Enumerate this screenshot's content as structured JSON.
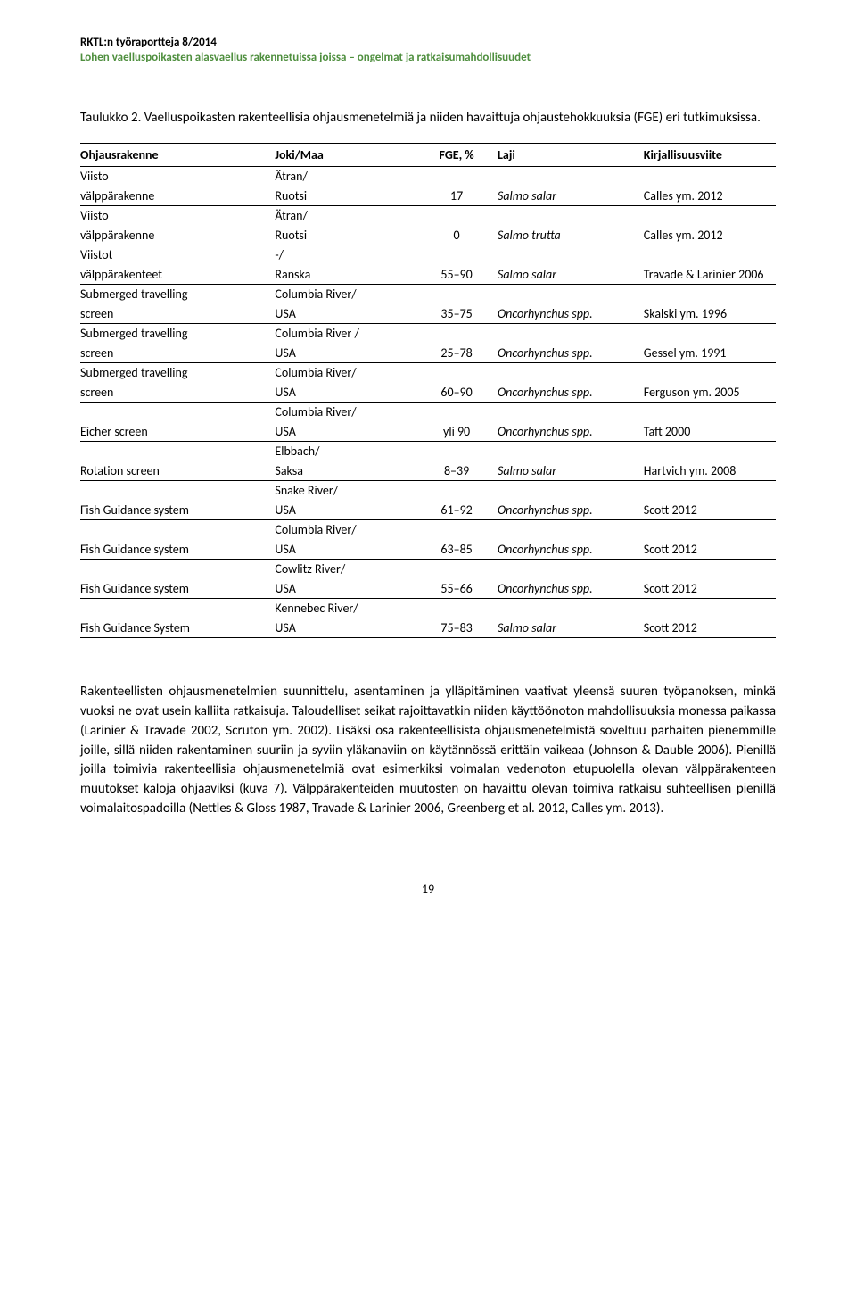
{
  "header": {
    "line1": "RKTL:n työraportteja 8/2014",
    "line2": "Lohen vaelluspoikasten alasvaellus rakennetuissa joissa – ongelmat ja ratkaisumahdollisuudet"
  },
  "caption": "Taulukko 2. Vaelluspoikasten rakenteellisia ohjausmenetelmiä ja niiden havaittuja ohjaustehokkuuksia (FGE) eri tutkimuksissa.",
  "table": {
    "headers": {
      "c0": "Ohjausrakenne",
      "c1": "Joki/Maa",
      "c2": "FGE, %",
      "c3": "Laji",
      "c4": "Kirjallisuusviite"
    },
    "rows": [
      {
        "c0a": "Viisto",
        "c0b": "välppärakenne",
        "c1a": "Ätran/",
        "c1b": "Ruotsi",
        "c2": "17",
        "c3": "Salmo salar",
        "c4": "Calles ym. 2012"
      },
      {
        "c0a": "Viisto",
        "c0b": "välppärakenne",
        "c1a": "Ätran/",
        "c1b": "Ruotsi",
        "c2": "0",
        "c3": "Salmo trutta",
        "c4": "Calles ym. 2012"
      },
      {
        "c0a": "Viistot",
        "c0b": "välppärakenteet",
        "c1a": "-/",
        "c1b": "Ranska",
        "c2": "55–90",
        "c3": "Salmo salar",
        "c4": "Travade & Larinier 2006"
      },
      {
        "c0a": "Submerged travelling",
        "c0b": "screen",
        "c1a": "Columbia River/",
        "c1b": "USA",
        "c2": "35–75",
        "c3": "Oncorhynchus spp.",
        "c4": "Skalski ym. 1996"
      },
      {
        "c0a": "Submerged travelling",
        "c0b": "screen",
        "c1a": "Columbia River /",
        "c1b": "USA",
        "c2": "25–78",
        "c3": "Oncorhynchus spp.",
        "c4": "Gessel ym. 1991"
      },
      {
        "c0a": "Submerged travelling",
        "c0b": "screen",
        "c1a": "Columbia River/",
        "c1b": "USA",
        "c2": "60–90",
        "c3": "Oncorhynchus spp.",
        "c4": "Ferguson ym. 2005"
      },
      {
        "c0a": "",
        "c0b": "Eicher screen",
        "c1a": "Columbia River/",
        "c1b": "USA",
        "c2": "yli 90",
        "c3": "Oncorhynchus spp.",
        "c4": "Taft 2000"
      },
      {
        "c0a": "",
        "c0b": "Rotation screen",
        "c1a": "Elbbach/",
        "c1b": "Saksa",
        "c2": "8–39",
        "c3": "Salmo salar",
        "c4": "Hartvich ym. 2008"
      },
      {
        "c0a": "",
        "c0b": "Fish Guidance system",
        "c1a": "Snake River/",
        "c1b": "USA",
        "c2": "61–92",
        "c3": "Oncorhynchus spp.",
        "c4": "Scott 2012"
      },
      {
        "c0a": "",
        "c0b": "Fish Guidance system",
        "c1a": "Columbia River/",
        "c1b": "USA",
        "c2": "63–85",
        "c3": "Oncorhynchus spp.",
        "c4": "Scott 2012"
      },
      {
        "c0a": "",
        "c0b": "Fish Guidance system",
        "c1a": "Cowlitz River/",
        "c1b": "USA",
        "c2": "55–66",
        "c3": "Oncorhynchus spp.",
        "c4": "Scott 2012"
      },
      {
        "c0a": "",
        "c0b": "Fish Guidance System",
        "c1a": "Kennebec River/",
        "c1b": "USA",
        "c2": "75–83",
        "c3": "Salmo salar",
        "c4": "Scott 2012"
      }
    ]
  },
  "body_paragraph": "Rakenteellisten ohjausmenetelmien suunnittelu, asentaminen ja ylläpitäminen vaativat yleensä suuren työpanoksen, minkä vuoksi ne ovat usein kalliita ratkaisuja. Taloudelliset seikat rajoittavatkin niiden käyttöönoton mahdollisuuksia monessa paikassa (Larinier & Travade 2002, Scruton ym. 2002). Lisäksi osa rakenteellisista ohjausmenetelmistä soveltuu parhaiten pienemmille joille, sillä niiden rakentaminen suuriin ja syviin yläkanaviin on käytännössä erittäin vaikeaa (Johnson & Dauble 2006). Pienillä joilla toimivia rakenteellisia ohjausmenetelmiä ovat esimerkiksi voimalan vedenoton etupuolella olevan välppärakenteen muutokset kaloja ohjaaviksi (kuva 7). Välppärakenteiden muutosten on havaittu olevan toimiva ratkaisu suhteellisen pienillä voimalaitospadoilla (Nettles & Gloss 1987, Travade & Larinier 2006, Greenberg et al. 2012, Calles ym. 2013).",
  "page_number": "19",
  "colors": {
    "text": "#000000",
    "accent": "#4f8f3f",
    "background": "#ffffff",
    "border": "#000000"
  }
}
